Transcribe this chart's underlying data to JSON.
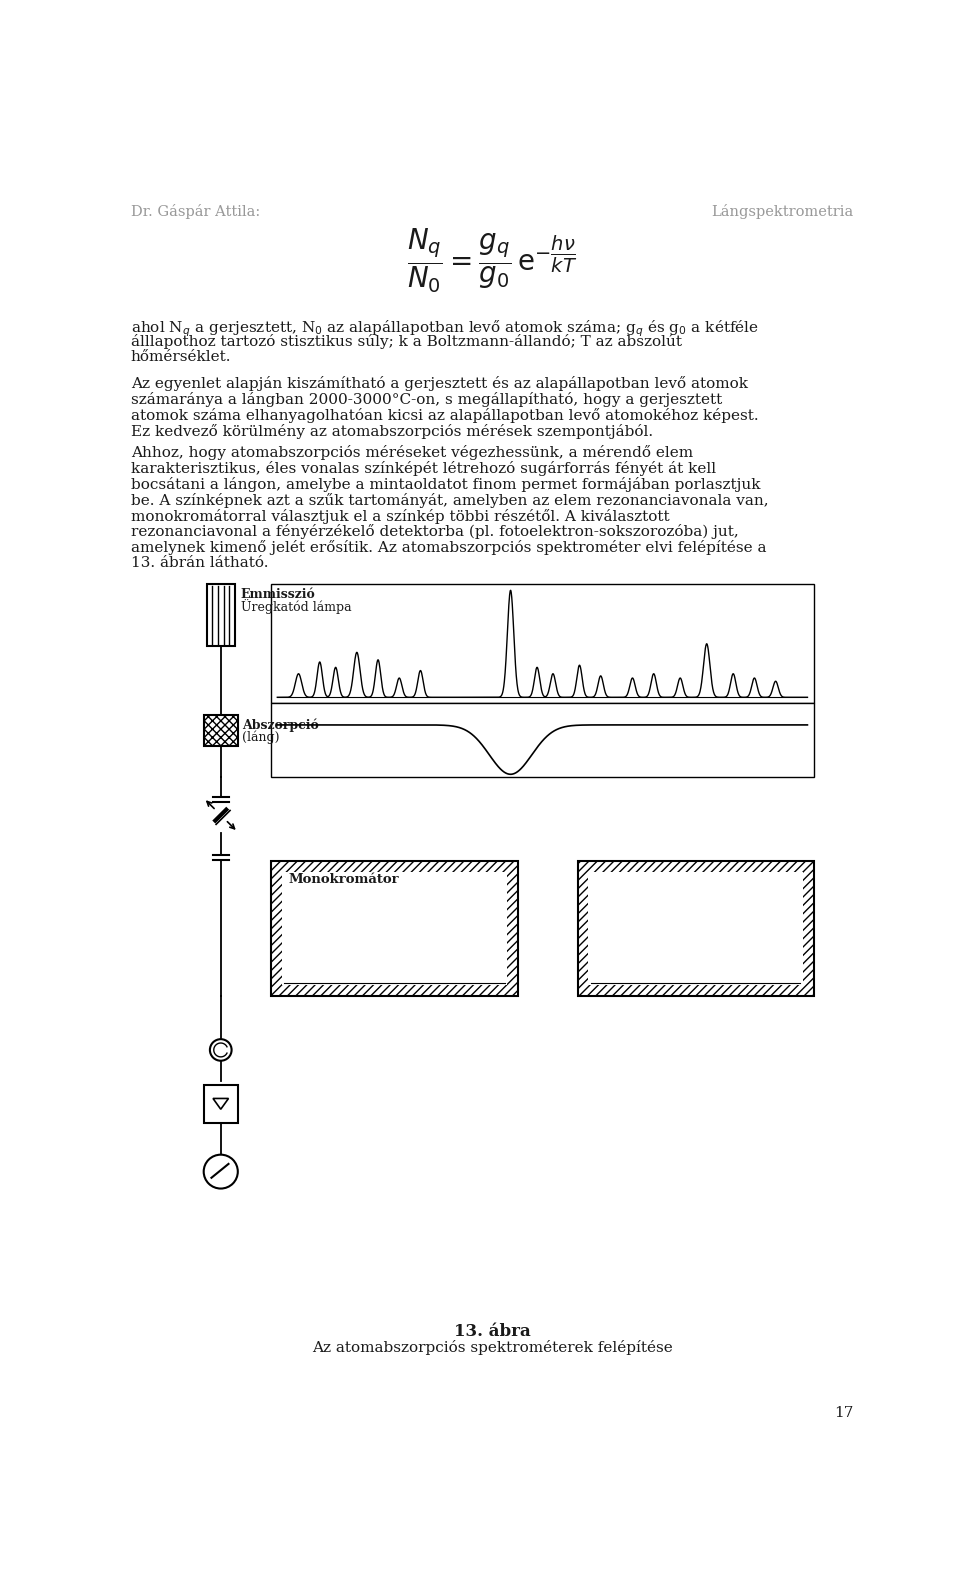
{
  "header_left": "Dr. Gáspár Attila:",
  "header_right": "Lángspektrometria",
  "page_number": "17",
  "p1_lines": [
    "ahol N\\(_q\\) a gerjesztett, N\\(_0\\) az alapállapotban levő atomok száma; g\\(_q\\) és g\\(_0\\) a kétféle",
    "álllapothoz tartozó stisztikus súly; k a Boltzmann-állandó; T az abszolút",
    "hőmérséklet."
  ],
  "p2_lines": [
    "Az egyenlet alapján kiszámítható a gerjesztett és az alapállapotban levő atomok",
    "számaránya a lángban 2000-3000°C-on, s megállapítható, hogy a gerjesztett",
    "atomok száma elhanyagolhatóan kicsi az alapállapotban levő atomokéhoz képest.",
    "Ez kedvező körülmény az atomabszorpciós mérések szempontjából."
  ],
  "p3_lines": [
    "Ahhoz, hogy atomabszorpciós méréseket végezhessünk, a mérendő elem",
    "karakterisztikus, éles vonalas színképét létrehozó sugárforrás fényét át kell",
    "bocsátani a lángon, amelybe a mintaoldatot finom permet formájában porlasztjuk",
    "be. A színképnek azt a szűk tartományát, amelyben az elem rezonanciavonala van,",
    "monokromátorral választjuk el a színkép többi részétől. A kiválasztott",
    "rezonanciavonal a fényérzékelő detektorba (pl. fotoelektron-sokszorozóba) jut,",
    "amelynek kimenő jelét erősítik. Az atomabszorpciós spektrométer elvi felépítése a",
    "13. ábrán látható."
  ],
  "fig_caption_bold": "13. ábra",
  "fig_caption": "Az atomabszorpciós spektrométerek felépítése",
  "label_emission": "Emmisszió\nÜregkatód lámpa",
  "label_absorption": "Abszorpció\n(láng)",
  "label_monochromator": "Monokromátor",
  "bg_color": "#ffffff",
  "text_color": "#1a1a1a",
  "header_color": "#999999"
}
